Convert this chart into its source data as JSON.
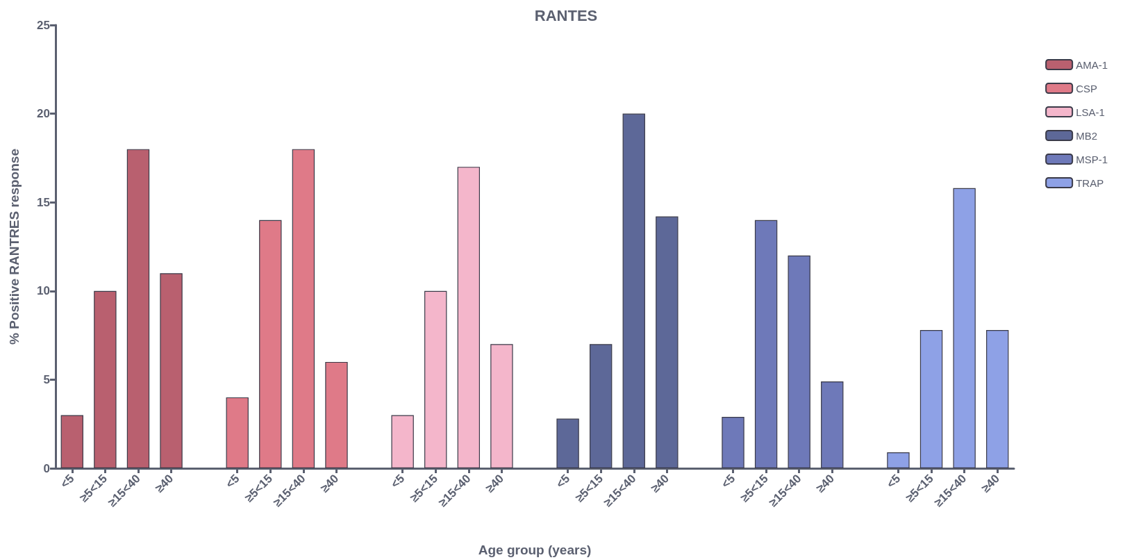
{
  "chart_data": {
    "type": "bar",
    "title": "RANTES",
    "xlabel": "Age group (years)",
    "ylabel": "% Positive RANTRES response",
    "categories": [
      "<5",
      "≥5<15",
      "≥15<40",
      "≥40",
      null,
      "<5",
      "≥5<15",
      "≥15<40",
      "≥40",
      null,
      "<5",
      "≥5<15",
      "≥15<40",
      "≥40",
      null,
      "<5",
      "≥5<15",
      "≥15<40",
      "≥40",
      null,
      "<5",
      "≥5<15",
      "≥15<40",
      "≥40",
      null,
      "<5",
      "≥5<15",
      "≥15<40",
      "≥40"
    ],
    "series": [
      {
        "name": "AMA-1",
        "color": "#b9606f",
        "values": [
          3,
          10,
          18,
          11,
          null,
          null,
          null,
          null,
          null,
          null,
          null,
          null,
          null,
          null,
          null,
          null,
          null,
          null,
          null,
          null,
          null,
          null,
          null,
          null,
          null,
          null,
          null,
          null,
          null
        ]
      },
      {
        "name": "CSP",
        "color": "#df7a88",
        "values": [
          null,
          null,
          null,
          null,
          null,
          4,
          14,
          18,
          6,
          null,
          null,
          null,
          null,
          null,
          null,
          null,
          null,
          null,
          null,
          null,
          null,
          null,
          null,
          null,
          null,
          null,
          null,
          null,
          null
        ]
      },
      {
        "name": "LSA-1",
        "color": "#f4b6cb",
        "values": [
          null,
          null,
          null,
          null,
          null,
          null,
          null,
          null,
          null,
          null,
          3,
          10,
          17,
          7,
          null,
          null,
          null,
          null,
          null,
          null,
          null,
          null,
          null,
          null,
          null,
          null,
          null,
          null,
          null
        ]
      },
      {
        "name": "MB2",
        "color": "#5d6898",
        "values": [
          null,
          null,
          null,
          null,
          null,
          null,
          null,
          null,
          null,
          null,
          null,
          null,
          null,
          null,
          null,
          2.8,
          7,
          20,
          14.2,
          null,
          null,
          null,
          null,
          null,
          null,
          null,
          null,
          null,
          null
        ]
      },
      {
        "name": "MSP-1",
        "color": "#6e79b9",
        "values": [
          null,
          null,
          null,
          null,
          null,
          null,
          null,
          null,
          null,
          null,
          null,
          null,
          null,
          null,
          null,
          null,
          null,
          null,
          null,
          null,
          2.9,
          14,
          12,
          4.9,
          null,
          null,
          null,
          null,
          null
        ]
      },
      {
        "name": "TRAP",
        "color": "#8ea1e6",
        "values": [
          null,
          null,
          null,
          null,
          null,
          null,
          null,
          null,
          null,
          null,
          null,
          null,
          null,
          null,
          null,
          null,
          null,
          null,
          null,
          null,
          null,
          null,
          null,
          null,
          null,
          0.9,
          7.8,
          15.8,
          7.8
        ]
      }
    ],
    "ylim": [
      0,
      25
    ],
    "yticks": [
      0,
      5,
      10,
      15,
      20,
      25
    ],
    "grid": false,
    "legend": "right"
  }
}
